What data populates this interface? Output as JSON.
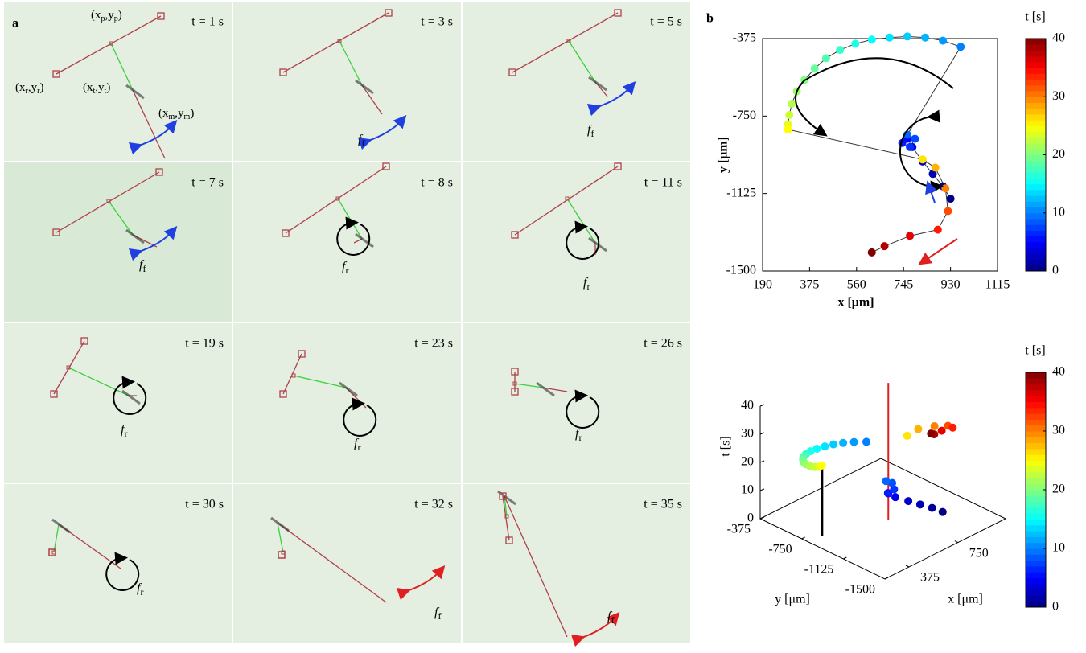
{
  "panel_a": {
    "label": "a",
    "point_labels": [
      {
        "parts": [
          "(x",
          "p",
          ",y",
          "p",
          ")"
        ]
      },
      {
        "parts": [
          "(x",
          "r",
          ",y",
          "r",
          ")"
        ]
      },
      {
        "parts": [
          "(x",
          "t",
          ",y",
          "t",
          ")"
        ]
      },
      {
        "parts": [
          "(x",
          "m",
          ",y",
          "m",
          ")"
        ]
      }
    ],
    "tiles": [
      {
        "time": "t = 1 s",
        "arrow": {
          "shape": "double",
          "color": "#1f3fe0"
        }
      },
      {
        "time": "t = 3 s",
        "annotation": {
          "base": "f",
          "sub": "f"
        },
        "arrow": {
          "shape": "double",
          "color": "#1f3fe0"
        }
      },
      {
        "time": "t = 5 s",
        "annotation": {
          "base": "f",
          "sub": "f"
        },
        "arrow": {
          "shape": "double",
          "color": "#1f3fe0"
        }
      },
      {
        "time": "t = 7 s",
        "annotation": {
          "base": "f",
          "sub": "f"
        },
        "arrow": {
          "shape": "double",
          "color": "#1f3fe0"
        }
      },
      {
        "time": "t = 8 s",
        "annotation": {
          "base": "f",
          "sub": "r"
        },
        "arrow": {
          "shape": "circle",
          "color": "#000000"
        }
      },
      {
        "time": "t = 11 s",
        "annotation": {
          "base": "f",
          "sub": "r"
        },
        "arrow": {
          "shape": "circle",
          "color": "#000000"
        }
      },
      {
        "time": "t = 19 s",
        "annotation": {
          "base": "f",
          "sub": "r"
        },
        "arrow": {
          "shape": "circle",
          "color": "#000000"
        }
      },
      {
        "time": "t = 23 s",
        "annotation": {
          "base": "f",
          "sub": "r"
        },
        "arrow": {
          "shape": "circle",
          "color": "#000000"
        }
      },
      {
        "time": "t = 26 s",
        "annotation": {
          "base": "f",
          "sub": "r"
        },
        "arrow": {
          "shape": "circle",
          "color": "#000000"
        }
      },
      {
        "time": "t = 30 s",
        "annotation": {
          "base": "f",
          "sub": "r"
        },
        "arrow": {
          "shape": "circle",
          "color": "#000000"
        }
      },
      {
        "time": "t = 32 s",
        "annotation": {
          "base": "f",
          "sub": "f"
        },
        "arrow": {
          "shape": "double",
          "color": "#e02020"
        }
      },
      {
        "time": "t = 35 s",
        "annotation": {
          "base": "f",
          "sub": "f"
        },
        "arrow": {
          "shape": "double",
          "color": "#e02020"
        }
      }
    ]
  },
  "panel_b": {
    "label": "b",
    "plot2d": {
      "xlabel": "x [μm]",
      "ylabel": "y [μm]",
      "xlim": [
        190,
        1115
      ],
      "xticks": [
        190,
        375,
        560,
        745,
        930,
        1115
      ],
      "ylim": [
        -1500,
        -375
      ],
      "yticks": [
        -375,
        -750,
        -1125,
        -1500
      ]
    },
    "plot3d": {
      "tlabel": "t [s]",
      "ylabel": "y [μm]",
      "xlabel": "x [μm]",
      "tlim": [
        0,
        40
      ],
      "tticks": [
        0,
        10,
        20,
        30,
        40
      ],
      "ylim": [
        -375,
        -1500
      ],
      "yticks": [
        -375,
        -750,
        -1125,
        -1500
      ],
      "xlim": [
        190,
        1115
      ],
      "xticks": [
        375,
        750
      ]
    },
    "colorbar": {
      "label": "t [s]",
      "lim": [
        0,
        40
      ],
      "ticks": [
        0,
        10,
        20,
        30,
        40
      ]
    },
    "trajectory": {
      "t": [
        0,
        1,
        2,
        3,
        4,
        5,
        6,
        7,
        8,
        9,
        10,
        11,
        12,
        13,
        14,
        15,
        16,
        17,
        18,
        19,
        20,
        21,
        22,
        23,
        24,
        25,
        26,
        28,
        30,
        32,
        34,
        36,
        38,
        40
      ],
      "x": [
        930,
        900,
        860,
        820,
        780,
        760,
        740,
        770,
        790,
        760,
        970,
        900,
        830,
        760,
        690,
        620,
        555,
        495,
        440,
        395,
        355,
        325,
        305,
        295,
        290,
        290,
        820,
        870,
        910,
        920,
        880,
        770,
        670,
        620
      ],
      "y": [
        -1150,
        -1090,
        -1030,
        -970,
        -900,
        -860,
        -880,
        -900,
        -860,
        -840,
        -415,
        -385,
        -370,
        -365,
        -370,
        -380,
        -400,
        -430,
        -470,
        -520,
        -575,
        -630,
        -690,
        -745,
        -790,
        -815,
        -960,
        -1000,
        -1100,
        -1210,
        -1300,
        -1330,
        -1380,
        -1410
      ]
    }
  }
}
